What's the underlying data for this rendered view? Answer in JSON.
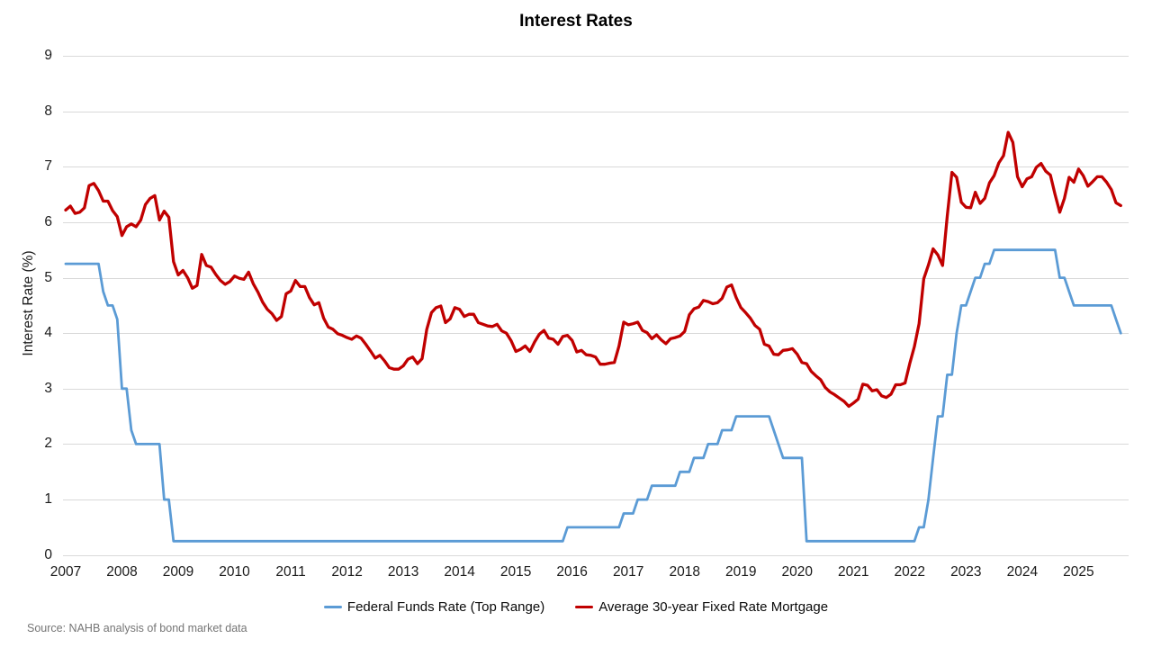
{
  "title": "Interest Rates",
  "y_axis": {
    "label": "Interest Rate (%)",
    "ticks": [
      0,
      1,
      2,
      3,
      4,
      5,
      6,
      7,
      8,
      9
    ]
  },
  "x_axis": {
    "years": [
      "2007",
      "2008",
      "2009",
      "2010",
      "2011",
      "2012",
      "2013",
      "2014",
      "2015",
      "2016",
      "2017",
      "2018",
      "2019",
      "2020",
      "2021",
      "2022",
      "2023",
      "2024",
      "2025"
    ]
  },
  "legend": {
    "items": [
      {
        "label": "Federal Funds Rate (Top Range)",
        "color": "#5B9BD5"
      },
      {
        "label": "Average 30-year Fixed Rate Mortgage",
        "color": "#C00000"
      }
    ]
  },
  "source": "Source: NAHB analysis of bond market data",
  "colors": {
    "gridline": "#D9D9D9",
    "federal_funds": "#5B9BD5",
    "mortgage": "#C00000"
  },
  "chart_data": {
    "type": "line",
    "title": "Interest Rates",
    "xlabel": "",
    "ylabel": "Interest Rate (%)",
    "ylim": [
      0,
      9
    ],
    "grid": "horizontal",
    "legend_position": "bottom",
    "frequency": "monthly",
    "x_start": "2007-01",
    "x_end": "2025-10",
    "x_axis_years": [
      2007,
      2008,
      2009,
      2010,
      2011,
      2012,
      2013,
      2014,
      2015,
      2016,
      2017,
      2018,
      2019,
      2020,
      2021,
      2022,
      2023,
      2024,
      2025
    ],
    "series": [
      {
        "name": "Federal Funds Rate (Top Range)",
        "color": "#5B9BD5",
        "values": [
          5.25,
          5.25,
          5.25,
          5.25,
          5.25,
          5.25,
          5.25,
          5.25,
          4.75,
          4.5,
          4.5,
          4.25,
          3,
          3,
          2.25,
          2,
          2,
          2,
          2,
          2,
          2,
          1,
          1,
          0.25,
          0.25,
          0.25,
          0.25,
          0.25,
          0.25,
          0.25,
          0.25,
          0.25,
          0.25,
          0.25,
          0.25,
          0.25,
          0.25,
          0.25,
          0.25,
          0.25,
          0.25,
          0.25,
          0.25,
          0.25,
          0.25,
          0.25,
          0.25,
          0.25,
          0.25,
          0.25,
          0.25,
          0.25,
          0.25,
          0.25,
          0.25,
          0.25,
          0.25,
          0.25,
          0.25,
          0.25,
          0.25,
          0.25,
          0.25,
          0.25,
          0.25,
          0.25,
          0.25,
          0.25,
          0.25,
          0.25,
          0.25,
          0.25,
          0.25,
          0.25,
          0.25,
          0.25,
          0.25,
          0.25,
          0.25,
          0.25,
          0.25,
          0.25,
          0.25,
          0.25,
          0.25,
          0.25,
          0.25,
          0.25,
          0.25,
          0.25,
          0.25,
          0.25,
          0.25,
          0.25,
          0.25,
          0.25,
          0.25,
          0.25,
          0.25,
          0.25,
          0.25,
          0.25,
          0.25,
          0.25,
          0.25,
          0.25,
          0.25,
          0.5,
          0.5,
          0.5,
          0.5,
          0.5,
          0.5,
          0.5,
          0.5,
          0.5,
          0.5,
          0.5,
          0.5,
          0.75,
          0.75,
          0.75,
          1,
          1,
          1,
          1.25,
          1.25,
          1.25,
          1.25,
          1.25,
          1.25,
          1.5,
          1.5,
          1.5,
          1.75,
          1.75,
          1.75,
          2,
          2,
          2,
          2.25,
          2.25,
          2.25,
          2.5,
          2.5,
          2.5,
          2.5,
          2.5,
          2.5,
          2.5,
          2.5,
          2.25,
          2,
          1.75,
          1.75,
          1.75,
          1.75,
          1.75,
          0.25,
          0.25,
          0.25,
          0.25,
          0.25,
          0.25,
          0.25,
          0.25,
          0.25,
          0.25,
          0.25,
          0.25,
          0.25,
          0.25,
          0.25,
          0.25,
          0.25,
          0.25,
          0.25,
          0.25,
          0.25,
          0.25,
          0.25,
          0.25,
          0.5,
          0.5,
          1,
          1.75,
          2.5,
          2.5,
          3.25,
          3.25,
          4,
          4.5,
          4.5,
          4.75,
          5,
          5,
          5.25,
          5.25,
          5.5,
          5.5,
          5.5,
          5.5,
          5.5,
          5.5,
          5.5,
          5.5,
          5.5,
          5.5,
          5.5,
          5.5,
          5.5,
          5.5,
          5,
          5,
          4.75,
          4.5,
          4.5,
          4.5,
          4.5,
          4.5,
          4.5,
          4.5,
          4.5,
          4.5,
          4.25,
          4
        ]
      },
      {
        "name": "Average 30-year Fixed Rate Mortgage",
        "color": "#C00000",
        "values": [
          6.22,
          6.29,
          6.16,
          6.18,
          6.26,
          6.66,
          6.7,
          6.57,
          6.38,
          6.38,
          6.21,
          6.1,
          5.76,
          5.92,
          5.97,
          5.92,
          6.04,
          6.32,
          6.43,
          6.48,
          6.04,
          6.2,
          6.09,
          5.29,
          5.05,
          5.13,
          5.0,
          4.81,
          4.86,
          5.42,
          5.22,
          5.19,
          5.06,
          4.95,
          4.88,
          4.93,
          5.03,
          4.99,
          4.97,
          5.1,
          4.89,
          4.74,
          4.56,
          4.43,
          4.35,
          4.23,
          4.3,
          4.71,
          4.76,
          4.95,
          4.84,
          4.84,
          4.64,
          4.51,
          4.55,
          4.27,
          4.11,
          4.07,
          3.99,
          3.96,
          3.92,
          3.89,
          3.95,
          3.91,
          3.8,
          3.68,
          3.55,
          3.6,
          3.5,
          3.38,
          3.35,
          3.35,
          3.41,
          3.53,
          3.57,
          3.45,
          3.54,
          4.07,
          4.37,
          4.46,
          4.49,
          4.19,
          4.26,
          4.46,
          4.43,
          4.3,
          4.34,
          4.34,
          4.19,
          4.16,
          4.13,
          4.12,
          4.16,
          4.04,
          4.0,
          3.86,
          3.67,
          3.71,
          3.77,
          3.67,
          3.84,
          3.98,
          4.05,
          3.91,
          3.89,
          3.8,
          3.94,
          3.96,
          3.87,
          3.66,
          3.69,
          3.61,
          3.6,
          3.57,
          3.44,
          3.44,
          3.46,
          3.47,
          3.77,
          4.2,
          4.15,
          4.17,
          4.2,
          4.05,
          4.01,
          3.9,
          3.97,
          3.88,
          3.81,
          3.9,
          3.92,
          3.95,
          4.03,
          4.33,
          4.44,
          4.47,
          4.59,
          4.57,
          4.53,
          4.55,
          4.63,
          4.83,
          4.87,
          4.64,
          4.46,
          4.37,
          4.27,
          4.14,
          4.07,
          3.8,
          3.77,
          3.62,
          3.61,
          3.69,
          3.7,
          3.72,
          3.62,
          3.47,
          3.45,
          3.31,
          3.23,
          3.16,
          3.02,
          2.94,
          2.89,
          2.83,
          2.77,
          2.68,
          2.74,
          2.81,
          3.08,
          3.06,
          2.96,
          2.98,
          2.87,
          2.84,
          2.9,
          3.07,
          3.07,
          3.1,
          3.45,
          3.76,
          4.17,
          4.98,
          5.23,
          5.52,
          5.41,
          5.22,
          6.11,
          6.9,
          6.81,
          6.36,
          6.27,
          6.26,
          6.54,
          6.34,
          6.43,
          6.71,
          6.84,
          7.07,
          7.2,
          7.62,
          7.44,
          6.82,
          6.64,
          6.78,
          6.82,
          6.99,
          7.06,
          6.92,
          6.85,
          6.5,
          6.18,
          6.43,
          6.81,
          6.72,
          6.96,
          6.84,
          6.65,
          6.73,
          6.82,
          6.82,
          6.72,
          6.59,
          6.35,
          6.3
        ]
      }
    ]
  }
}
